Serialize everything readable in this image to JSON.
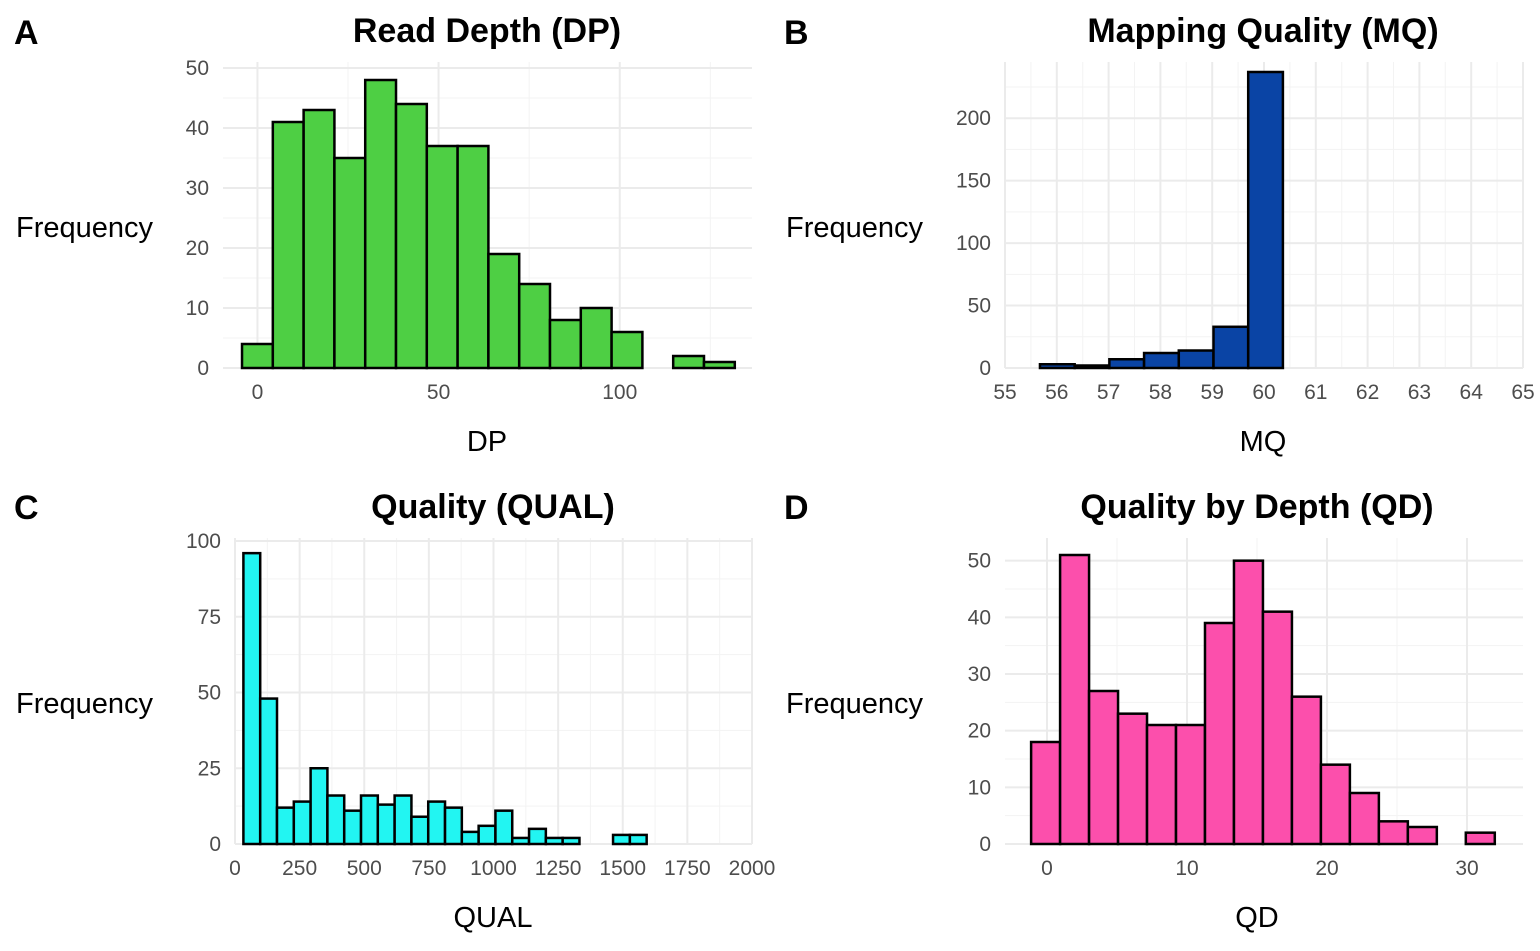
{
  "chart_data": [
    {
      "panel": "A",
      "type": "bar",
      "title": "Read Depth (DP)",
      "xlabel": "DP",
      "ylabel": "Frequency",
      "color": "#4ecf44",
      "binwidth": 8.5,
      "xlim": [
        -9.5,
        136.5
      ],
      "ylim": [
        0,
        51
      ],
      "xticks": [
        0,
        50,
        100
      ],
      "xtick_labels": [
        "0",
        "50",
        "100"
      ],
      "yticks": [
        0,
        10,
        20,
        30,
        40,
        50
      ],
      "ytick_labels": [
        "0",
        "10",
        "20",
        "30",
        "40",
        "50"
      ],
      "bins": [
        {
          "x": 0,
          "count": 4
        },
        {
          "x": 8.5,
          "count": 41
        },
        {
          "x": 17,
          "count": 43
        },
        {
          "x": 25.5,
          "count": 35
        },
        {
          "x": 34,
          "count": 48
        },
        {
          "x": 42.5,
          "count": 44
        },
        {
          "x": 51,
          "count": 37
        },
        {
          "x": 59.5,
          "count": 37
        },
        {
          "x": 68,
          "count": 19
        },
        {
          "x": 76.5,
          "count": 14
        },
        {
          "x": 85,
          "count": 8
        },
        {
          "x": 93.5,
          "count": 10
        },
        {
          "x": 102,
          "count": 6
        },
        {
          "x": 110.5,
          "count": 0
        },
        {
          "x": 119,
          "count": 2
        },
        {
          "x": 127.5,
          "count": 1
        }
      ]
    },
    {
      "panel": "B",
      "type": "bar",
      "title": "Mapping Quality (MQ)",
      "xlabel": "MQ",
      "ylabel": "Frequency",
      "color": "#0a44a5",
      "binwidth": 0.67,
      "xlim": [
        55,
        65
      ],
      "ylim": [
        0,
        245
      ],
      "xticks": [
        55,
        56,
        57,
        58,
        59,
        60,
        61,
        62,
        63,
        64,
        65
      ],
      "xtick_labels": [
        "55",
        "56",
        "57",
        "58",
        "59",
        "60",
        "61",
        "62",
        "63",
        "64",
        "65"
      ],
      "yticks": [
        0,
        50,
        100,
        150,
        200
      ],
      "ytick_labels": [
        "0",
        "50",
        "100",
        "150",
        "200"
      ],
      "bins": [
        {
          "x": 55.34,
          "count": 0
        },
        {
          "x": 56.01,
          "count": 3
        },
        {
          "x": 56.68,
          "count": 2
        },
        {
          "x": 57.35,
          "count": 7
        },
        {
          "x": 58.02,
          "count": 12
        },
        {
          "x": 58.69,
          "count": 14
        },
        {
          "x": 59.36,
          "count": 33
        },
        {
          "x": 60.03,
          "count": 237
        },
        {
          "x": 60.7,
          "count": 0
        },
        {
          "x": 61.37,
          "count": 0
        },
        {
          "x": 62.04,
          "count": 0
        },
        {
          "x": 62.71,
          "count": 0
        },
        {
          "x": 63.38,
          "count": 0
        },
        {
          "x": 64.05,
          "count": 0
        },
        {
          "x": 64.72,
          "count": 0
        }
      ]
    },
    {
      "panel": "C",
      "type": "bar",
      "title": "Quality (QUAL)",
      "xlabel": "QUAL",
      "ylabel": "Frequency",
      "color": "#22f5f2",
      "binwidth": 65,
      "xlim": [
        0,
        2000
      ],
      "ylim": [
        0,
        101
      ],
      "xticks": [
        0,
        250,
        500,
        750,
        1000,
        1250,
        1500,
        1750,
        2000
      ],
      "xtick_labels": [
        "0",
        "250",
        "500",
        "750",
        "1000",
        "1250",
        "1500",
        "1750",
        "2000"
      ],
      "yticks": [
        0,
        25,
        50,
        75,
        100
      ],
      "ytick_labels": [
        "0",
        "25",
        "50",
        "75",
        "100"
      ],
      "bins": [
        {
          "x": 65,
          "count": 96
        },
        {
          "x": 130,
          "count": 48
        },
        {
          "x": 195,
          "count": 12
        },
        {
          "x": 260,
          "count": 14
        },
        {
          "x": 325,
          "count": 25
        },
        {
          "x": 390,
          "count": 16
        },
        {
          "x": 455,
          "count": 11
        },
        {
          "x": 520,
          "count": 16
        },
        {
          "x": 585,
          "count": 13
        },
        {
          "x": 650,
          "count": 16
        },
        {
          "x": 715,
          "count": 9
        },
        {
          "x": 780,
          "count": 14
        },
        {
          "x": 845,
          "count": 12
        },
        {
          "x": 910,
          "count": 4
        },
        {
          "x": 975,
          "count": 6
        },
        {
          "x": 1040,
          "count": 11
        },
        {
          "x": 1105,
          "count": 2
        },
        {
          "x": 1170,
          "count": 5
        },
        {
          "x": 1235,
          "count": 2
        },
        {
          "x": 1300,
          "count": 2
        },
        {
          "x": 1365,
          "count": 0
        },
        {
          "x": 1430,
          "count": 0
        },
        {
          "x": 1495,
          "count": 3
        },
        {
          "x": 1560,
          "count": 3
        },
        {
          "x": 1625,
          "count": 0
        },
        {
          "x": 1690,
          "count": 0
        },
        {
          "x": 1755,
          "count": 0
        },
        {
          "x": 1820,
          "count": 0
        },
        {
          "x": 1885,
          "count": 0
        }
      ]
    },
    {
      "panel": "D",
      "type": "bar",
      "title": "Quality by Depth (QD)",
      "xlabel": "QD",
      "ylabel": "Frequency",
      "color": "#fc4fac",
      "binwidth": 2.07,
      "xlim": [
        -3,
        34
      ],
      "ylim": [
        0,
        54
      ],
      "xticks": [
        0,
        10,
        20,
        30
      ],
      "xtick_labels": [
        "0",
        "10",
        "20",
        "30"
      ],
      "yticks": [
        0,
        10,
        20,
        30,
        40,
        50
      ],
      "ytick_labels": [
        "0",
        "10",
        "20",
        "30",
        "40",
        "50"
      ],
      "bins": [
        {
          "x": -0.1,
          "count": 18
        },
        {
          "x": 1.97,
          "count": 51
        },
        {
          "x": 4.04,
          "count": 27
        },
        {
          "x": 6.11,
          "count": 23
        },
        {
          "x": 8.18,
          "count": 21
        },
        {
          "x": 10.25,
          "count": 21
        },
        {
          "x": 12.32,
          "count": 39
        },
        {
          "x": 14.39,
          "count": 50
        },
        {
          "x": 16.46,
          "count": 41
        },
        {
          "x": 18.53,
          "count": 26
        },
        {
          "x": 20.6,
          "count": 14
        },
        {
          "x": 22.67,
          "count": 9
        },
        {
          "x": 24.74,
          "count": 4
        },
        {
          "x": 26.81,
          "count": 3
        },
        {
          "x": 28.88,
          "count": 0
        },
        {
          "x": 30.95,
          "count": 2
        }
      ]
    }
  ]
}
